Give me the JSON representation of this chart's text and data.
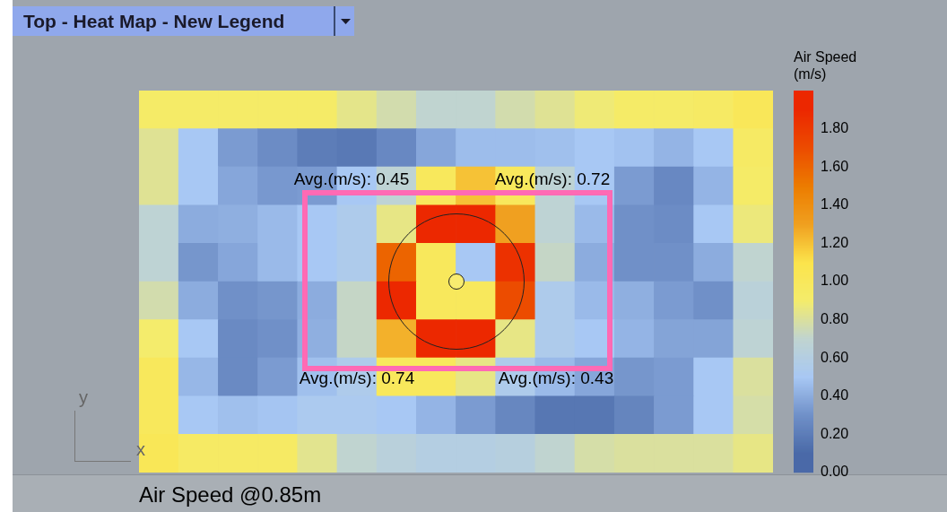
{
  "chart_data": {
    "type": "heatmap",
    "title": "Top - Heat Map - New Legend",
    "xlabel": "x",
    "ylabel": "y",
    "clabel": "Air Speed\n(m/s)",
    "categories": [
      null,
      null,
      null,
      null,
      null,
      null,
      null,
      null,
      null,
      null,
      null,
      null,
      null,
      null,
      null,
      null
    ],
    "y_categories": [
      null,
      null,
      null,
      null,
      null,
      null,
      null,
      null,
      null,
      null
    ],
    "cells": [
      [
        0.93,
        0.93,
        0.93,
        0.93,
        0.93,
        0.84,
        0.77,
        0.7,
        0.7,
        0.77,
        0.82,
        0.88,
        0.93,
        0.93,
        0.95,
        1.02
      ],
      [
        0.82,
        0.5,
        0.34,
        0.28,
        0.2,
        0.18,
        0.26,
        0.38,
        0.46,
        0.46,
        0.47,
        0.5,
        0.48,
        0.43,
        0.5,
        0.95
      ],
      [
        0.82,
        0.5,
        0.38,
        0.33,
        0.34,
        0.5,
        0.68,
        1.0,
        1.2,
        1.0,
        0.68,
        0.5,
        0.34,
        0.26,
        0.43,
        0.93
      ],
      [
        0.68,
        0.4,
        0.41,
        0.45,
        0.5,
        0.55,
        0.85,
        1.9,
        1.9,
        1.3,
        0.68,
        0.45,
        0.3,
        0.28,
        0.5,
        0.87
      ],
      [
        0.68,
        0.32,
        0.38,
        0.45,
        0.5,
        0.55,
        1.6,
        1.0,
        0.5,
        1.85,
        0.72,
        0.4,
        0.3,
        0.3,
        0.4,
        0.7
      ],
      [
        0.77,
        0.4,
        0.3,
        0.32,
        0.4,
        0.72,
        1.9,
        1.0,
        1.0,
        1.7,
        0.55,
        0.45,
        0.41,
        0.34,
        0.3,
        0.65
      ],
      [
        0.9,
        0.5,
        0.27,
        0.3,
        0.41,
        0.72,
        1.25,
        1.9,
        1.9,
        0.85,
        0.55,
        0.5,
        0.43,
        0.37,
        0.37,
        0.68
      ],
      [
        1.0,
        0.44,
        0.27,
        0.34,
        0.47,
        0.55,
        1.0,
        1.0,
        0.85,
        0.55,
        0.45,
        0.38,
        0.32,
        0.34,
        0.5,
        0.8
      ],
      [
        1.0,
        0.5,
        0.47,
        0.49,
        0.53,
        0.53,
        0.5,
        0.43,
        0.34,
        0.25,
        0.17,
        0.17,
        0.24,
        0.34,
        0.5,
        0.78
      ],
      [
        1.03,
        0.95,
        0.95,
        0.95,
        0.83,
        0.7,
        0.64,
        0.6,
        0.6,
        0.62,
        0.7,
        0.78,
        0.8,
        0.8,
        0.8,
        0.85
      ]
    ],
    "clim": [
      0,
      2
    ],
    "cticks": [
      {
        "value": 0,
        "label": "0.00"
      },
      {
        "value": 0.2,
        "label": "0.20"
      },
      {
        "value": 0.4,
        "label": "0.40"
      },
      {
        "value": 0.6,
        "label": "0.60"
      },
      {
        "value": 0.8,
        "label": "0.80"
      },
      {
        "value": 1,
        "label": "1.00"
      },
      {
        "value": 1.2,
        "label": "1.20"
      },
      {
        "value": 1.4,
        "label": "1.40"
      },
      {
        "value": 1.6,
        "label": "1.60"
      },
      {
        "value": 1.8,
        "label": "1.80"
      }
    ],
    "tick_labels": false,
    "annotations": [
      "Avg.(m/s): 0.45",
      "Avg.(m/s): 0.72",
      "Avg.(m/s): 0.74",
      "Avg.(m/s): 0.43",
      "Air Speed @0.85m"
    ]
  }
}
